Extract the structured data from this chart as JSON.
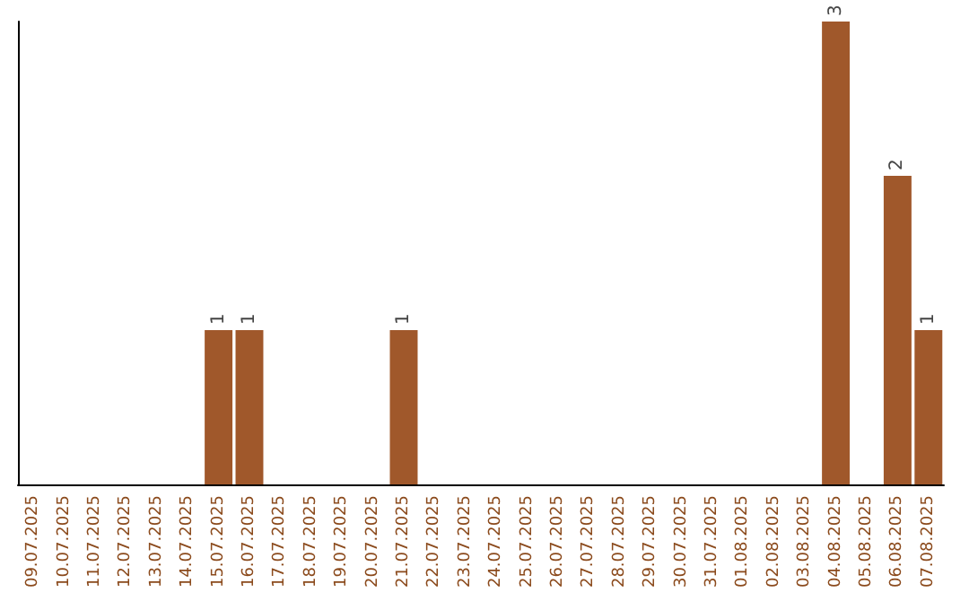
{
  "chart_data": {
    "type": "bar",
    "categories": [
      "09.07.2025",
      "10.07.2025",
      "11.07.2025",
      "12.07.2025",
      "13.07.2025",
      "14.07.2025",
      "15.07.2025",
      "16.07.2025",
      "17.07.2025",
      "18.07.2025",
      "19.07.2025",
      "20.07.2025",
      "21.07.2025",
      "22.07.2025",
      "23.07.2025",
      "24.07.2025",
      "25.07.2025",
      "26.07.2025",
      "27.07.2025",
      "28.07.2025",
      "29.07.2025",
      "30.07.2025",
      "31.07.2025",
      "01.08.2025",
      "02.08.2025",
      "03.08.2025",
      "04.08.2025",
      "05.08.2025",
      "06.08.2025",
      "07.08.2025"
    ],
    "values": [
      0,
      0,
      0,
      0,
      0,
      0,
      1,
      1,
      0,
      0,
      0,
      0,
      1,
      0,
      0,
      0,
      0,
      0,
      0,
      0,
      0,
      0,
      0,
      0,
      0,
      0,
      3,
      0,
      2,
      1
    ],
    "value_labels": [
      null,
      null,
      null,
      null,
      null,
      null,
      "1",
      "1",
      null,
      null,
      null,
      null,
      "1",
      null,
      null,
      null,
      null,
      null,
      null,
      null,
      null,
      null,
      null,
      null,
      null,
      null,
      "3",
      null,
      "2",
      "1"
    ],
    "color": "#a0582b",
    "tick_labels": "x"
  }
}
